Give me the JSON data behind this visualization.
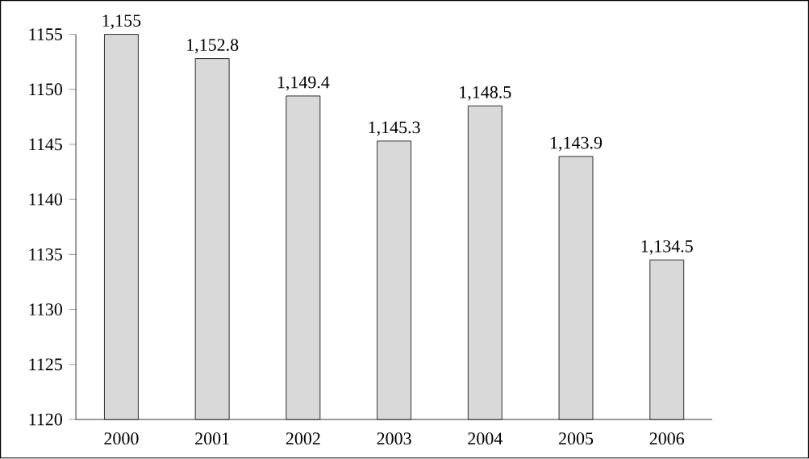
{
  "chart_data": {
    "type": "bar",
    "categories": [
      "2000",
      "2001",
      "2002",
      "2003",
      "2004",
      "2005",
      "2006"
    ],
    "values": [
      1155,
      1152.8,
      1149.4,
      1145.3,
      1148.5,
      1143.9,
      1134.5
    ],
    "value_labels": [
      "1,155",
      "1,152.8",
      "1,149.4",
      "1,145.3",
      "1,148.5",
      "1,143.9",
      "1,134.5"
    ],
    "color": "#d9d9d9",
    "ylim": [
      1120,
      1155
    ],
    "yticks": [
      1120,
      1125,
      1130,
      1135,
      1140,
      1145,
      1150,
      1155
    ],
    "grid": false
  }
}
